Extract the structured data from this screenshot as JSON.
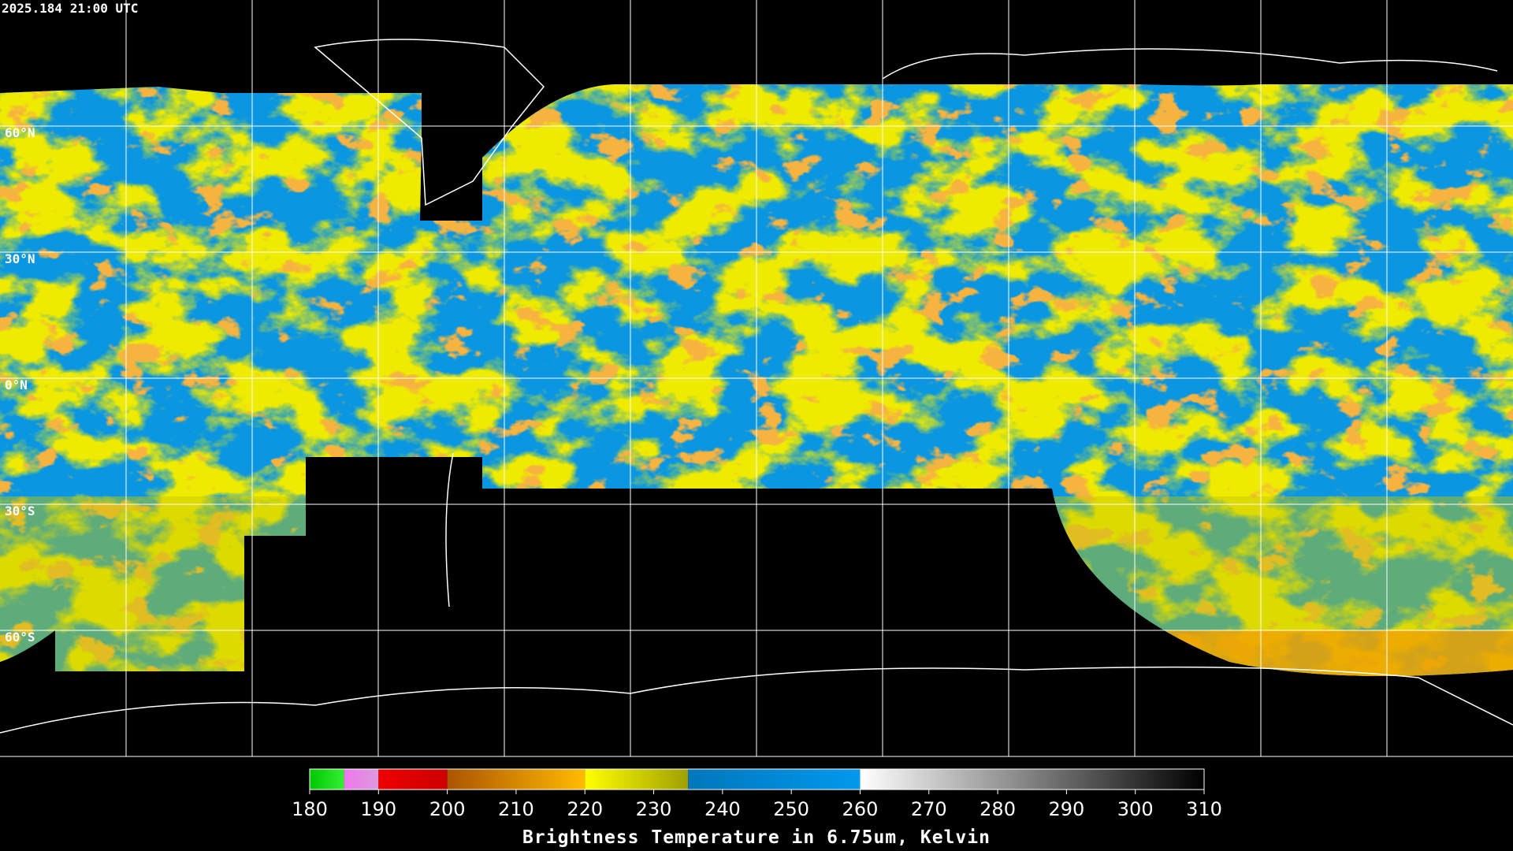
{
  "timestamp": "2025.184 21:00 UTC",
  "lat_labels": [
    "60°N",
    "30°N",
    "0°N",
    "30°S",
    "60°S"
  ],
  "colorbar": {
    "title": "Brightness Temperature in 6.75um, Kelvin",
    "range": [
      180,
      310
    ],
    "ticks": [
      180,
      190,
      200,
      210,
      220,
      230,
      240,
      250,
      260,
      270,
      280,
      290,
      300,
      310
    ],
    "scale": [
      {
        "from": 180,
        "to": 185,
        "colors": [
          "#00c800",
          "#33ee33"
        ]
      },
      {
        "from": 185,
        "to": 190,
        "colors": [
          "#ee77ee",
          "#dd99dd"
        ]
      },
      {
        "from": 190,
        "to": 200,
        "colors": [
          "#ee0000",
          "#cc0000"
        ]
      },
      {
        "from": 200,
        "to": 220,
        "colors": [
          "#aa5500",
          "#ffbb00"
        ]
      },
      {
        "from": 220,
        "to": 235,
        "colors": [
          "#ffff00",
          "#a0a000"
        ]
      },
      {
        "from": 235,
        "to": 260,
        "colors": [
          "#0077bb",
          "#0099ee"
        ]
      },
      {
        "from": 260,
        "to": 310,
        "colors": [
          "#ffffff",
          "#000000"
        ]
      }
    ]
  }
}
